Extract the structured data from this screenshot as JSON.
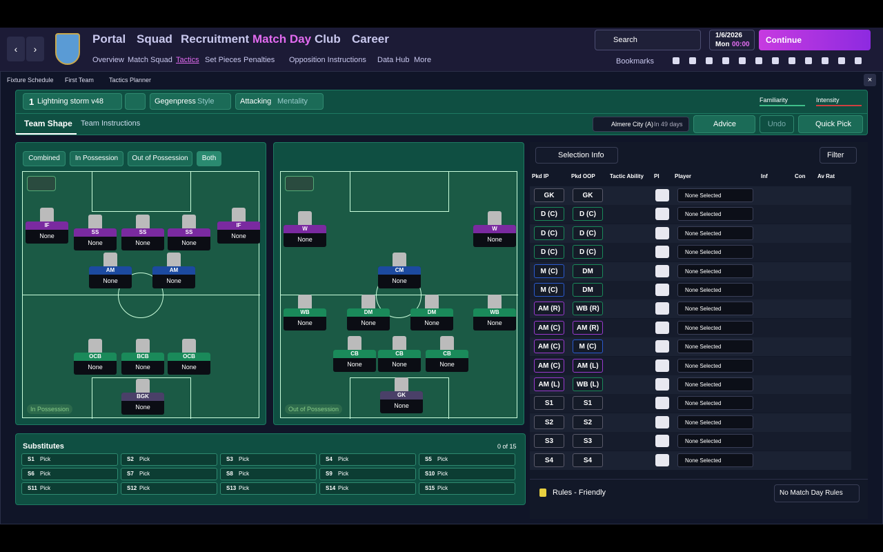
{
  "header": {
    "main_nav": [
      "Portal",
      "Squad",
      "Recruitment",
      "Match Day",
      "Club",
      "Career"
    ],
    "sub_nav": [
      "Overview",
      "Match Squad",
      "Tactics",
      "Set Pieces",
      "Penalties",
      "Opposition Instructions",
      "Data Hub",
      "More"
    ],
    "search": "Search",
    "date": "1/6/2026",
    "day": "Mon",
    "time": "00:00",
    "continue": "Continue",
    "bookmarks": "Bookmarks"
  },
  "breadcrumb": [
    "Fixture Schedule",
    "First Team",
    "Tactics Planner"
  ],
  "tactic": {
    "number": "1",
    "name": "Lightning storm v48",
    "style": "Gegenpress",
    "style_label": "Style",
    "mentality": "Attacking",
    "mentality_label": "Mentality",
    "familiarity": "Familiarity",
    "intensity": "Intensity"
  },
  "tabs": [
    "Team Shape",
    "Team Instructions"
  ],
  "match": {
    "opponent": "Almere City (A)",
    "when": "In 49 days",
    "advice": "Advice",
    "undo": "Undo",
    "quick_pick": "Quick Pick"
  },
  "shape_filters": [
    "Combined",
    "In Possession",
    "Out of Possession",
    "Both"
  ],
  "pitch_in": {
    "label": "In Possession",
    "players": [
      {
        "role": "IF",
        "name": "None"
      },
      {
        "role": "SS",
        "name": "None"
      },
      {
        "role": "SS",
        "name": "None"
      },
      {
        "role": "SS",
        "name": "None"
      },
      {
        "role": "IF",
        "name": "None"
      },
      {
        "role": "AM",
        "name": "None"
      },
      {
        "role": "AM",
        "name": "None"
      },
      {
        "role": "OCB",
        "name": "None"
      },
      {
        "role": "BCB",
        "name": "None"
      },
      {
        "role": "OCB",
        "name": "None"
      },
      {
        "role": "BGK",
        "name": "None"
      }
    ]
  },
  "pitch_out": {
    "label": "Out of Possession",
    "players": [
      {
        "role": "W",
        "name": "None"
      },
      {
        "role": "W",
        "name": "None"
      },
      {
        "role": "CM",
        "name": "None"
      },
      {
        "role": "WB",
        "name": "None"
      },
      {
        "role": "DM",
        "name": "None"
      },
      {
        "role": "DM",
        "name": "None"
      },
      {
        "role": "WB",
        "name": "None"
      },
      {
        "role": "CB",
        "name": "None"
      },
      {
        "role": "CB",
        "name": "None"
      },
      {
        "role": "CB",
        "name": "None"
      },
      {
        "role": "GK",
        "name": "None"
      }
    ]
  },
  "substitutes": {
    "title": "Substitutes",
    "count": "0 of 15",
    "slots": [
      {
        "slot": "S1",
        "value": "Pick"
      },
      {
        "slot": "S2",
        "value": "Pick"
      },
      {
        "slot": "S3",
        "value": "Pick"
      },
      {
        "slot": "S4",
        "value": "Pick"
      },
      {
        "slot": "S5",
        "value": "Pick"
      },
      {
        "slot": "S6",
        "value": "Pick"
      },
      {
        "slot": "S7",
        "value": "Pick"
      },
      {
        "slot": "S8",
        "value": "Pick"
      },
      {
        "slot": "S9",
        "value": "Pick"
      },
      {
        "slot": "S10",
        "value": "Pick"
      },
      {
        "slot": "S11",
        "value": "Pick"
      },
      {
        "slot": "S12",
        "value": "Pick"
      },
      {
        "slot": "S13",
        "value": "Pick"
      },
      {
        "slot": "S14",
        "value": "Pick"
      },
      {
        "slot": "S15",
        "value": "Pick"
      }
    ]
  },
  "selection": {
    "title": "Selection Info",
    "filter": "Filter",
    "columns": [
      "Pkd IP",
      "Pkd OOP",
      "Tactic Ability",
      "PI",
      "Player",
      "Inf",
      "Con",
      "Av Rat"
    ],
    "rows": [
      {
        "ip": "GK",
        "oop": "GK",
        "player": "None Selected"
      },
      {
        "ip": "D (C)",
        "oop": "D (C)",
        "player": "None Selected"
      },
      {
        "ip": "D (C)",
        "oop": "D (C)",
        "player": "None Selected"
      },
      {
        "ip": "D (C)",
        "oop": "D (C)",
        "player": "None Selected"
      },
      {
        "ip": "M (C)",
        "oop": "DM",
        "player": "None Selected"
      },
      {
        "ip": "M (C)",
        "oop": "DM",
        "player": "None Selected"
      },
      {
        "ip": "AM (R)",
        "oop": "WB (R)",
        "player": "None Selected"
      },
      {
        "ip": "AM (C)",
        "oop": "AM (R)",
        "player": "None Selected"
      },
      {
        "ip": "AM (C)",
        "oop": "M (C)",
        "player": "None Selected"
      },
      {
        "ip": "AM (C)",
        "oop": "AM (L)",
        "player": "None Selected"
      },
      {
        "ip": "AM (L)",
        "oop": "WB (L)",
        "player": "None Selected"
      },
      {
        "ip": "S1",
        "oop": "S1",
        "player": "None Selected"
      },
      {
        "ip": "S2",
        "oop": "S2",
        "player": "None Selected"
      },
      {
        "ip": "S3",
        "oop": "S3",
        "player": "None Selected"
      },
      {
        "ip": "S4",
        "oop": "S4",
        "player": "None Selected"
      }
    ],
    "rules": "Rules - Friendly",
    "match_day_rules": "No Match Day Rules"
  }
}
